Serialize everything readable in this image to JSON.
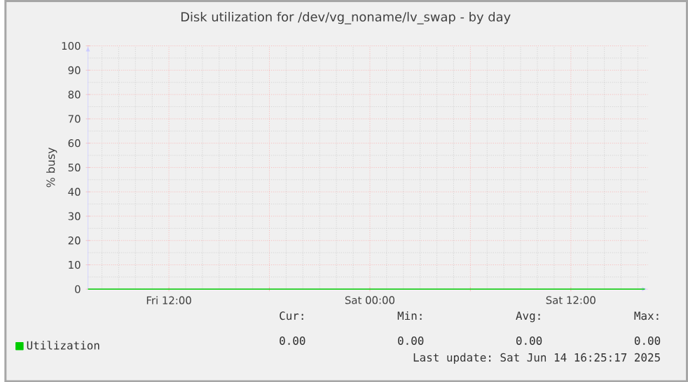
{
  "chart_data": {
    "type": "line",
    "title": "Disk utilization for /dev/vg_noname/lv_swap - by day",
    "ylabel": "% busy",
    "x": [
      "2025-06-13T07:10",
      "2025-06-14T16:25"
    ],
    "series": [
      {
        "name": "Utilization",
        "color": "#00cc00",
        "values": [
          0,
          0
        ]
      }
    ],
    "xlim": [
      "2025-06-13T07:10",
      "2025-06-14T16:35"
    ],
    "ylim": [
      0,
      100
    ],
    "xticks": [
      {
        "value": "2025-06-13T12:00",
        "label": "Fri 12:00"
      },
      {
        "value": "2025-06-13T18:00",
        "label": null
      },
      {
        "value": "2025-06-14T00:00",
        "label": "Sat 00:00"
      },
      {
        "value": "2025-06-14T06:00",
        "label": null
      },
      {
        "value": "2025-06-14T12:00",
        "label": "Sat 12:00"
      }
    ],
    "yticks": [
      0,
      10,
      20,
      30,
      40,
      50,
      60,
      70,
      80,
      90,
      100
    ],
    "grid": true,
    "legend": "bottom left",
    "marker": "none",
    "line_style": "solid",
    "annotations": [
      "Cur:",
      "Min:",
      "Avg:",
      "Max:",
      "0.00",
      "0.00",
      "0.00",
      "0.00",
      "Last update: Sat Jun 14 16:25:17 2025"
    ]
  }
}
